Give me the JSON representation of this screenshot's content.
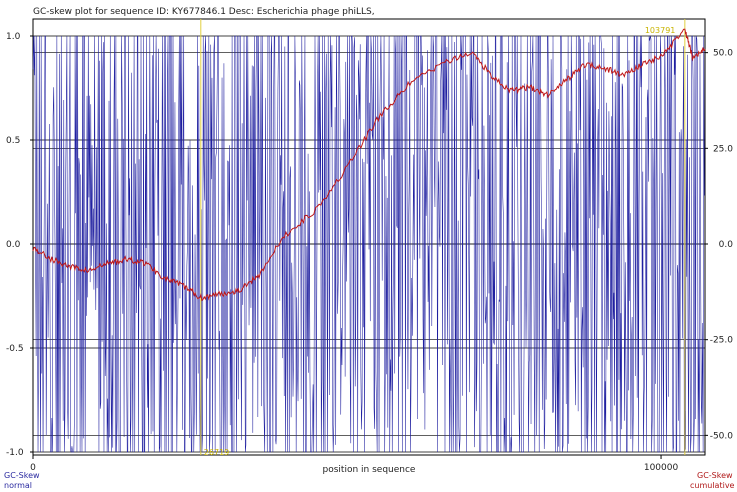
{
  "title": "GC-skew plot for sequence ID: KY677846.1 Desc: Escherichia phage phiLLS,",
  "legend": {
    "normal_title": "GC-Skew",
    "normal_sub": "normal",
    "cumulative_title": "GC-Skew",
    "cumulative_sub": "cumulative"
  },
  "colors": {
    "normal": "#1f1fa0",
    "cumulative": "#c01818",
    "marker": "#e0d040",
    "grid": "#000000"
  },
  "chart_data": {
    "type": "line",
    "title": "GC-skew plot for sequence ID: KY677846.1 Desc: Escherichia phage phiLLS,",
    "xlabel": "position in sequence",
    "ylabel_left": "GC-Skew normal",
    "ylabel_right": "GC-Skew cumulative",
    "xlim": [
      0,
      107000
    ],
    "ylim_left": [
      -1.0,
      1.0
    ],
    "ylim_right": [
      -60,
      60
    ],
    "x_ticks": [
      {
        "value": 0,
        "label": "0"
      },
      {
        "value": 100000,
        "label": "100000"
      }
    ],
    "y_left_ticks": [
      "1.0",
      "0.5",
      "0.0",
      "-0.5",
      "-1.0"
    ],
    "y_right_ticks": [
      "50.0",
      "25.0",
      "0.0",
      "-25.0",
      "-50.0"
    ],
    "markers": [
      {
        "x": 26719,
        "label": "26719",
        "label_pos": "bottom"
      },
      {
        "x": 103791,
        "label": "103791",
        "label_pos": "top"
      }
    ],
    "series": [
      {
        "name": "GC-Skew normal",
        "axis": "left",
        "window": 100,
        "note": "values oscillate between -1.0 and 1.0 across the sequence",
        "seed": 17
      },
      {
        "name": "GC-Skew cumulative",
        "axis": "right",
        "x": [
          0,
          3000,
          6000,
          9000,
          12000,
          15000,
          18000,
          21000,
          24000,
          26719,
          30000,
          33000,
          36000,
          40000,
          45000,
          50000,
          55000,
          60000,
          65000,
          70000,
          73000,
          76000,
          79000,
          82000,
          85000,
          88000,
          91000,
          94000,
          97000,
          100000,
          103791,
          105000,
          107000
        ],
        "values": [
          -1,
          -4,
          -6,
          -7,
          -5,
          -4,
          -5,
          -9,
          -11,
          -14,
          -13,
          -12,
          -8,
          2,
          9,
          20,
          33,
          42,
          47,
          50,
          44,
          40,
          41,
          39,
          43,
          47,
          46,
          44,
          47,
          49,
          56,
          49,
          51
        ]
      }
    ]
  }
}
